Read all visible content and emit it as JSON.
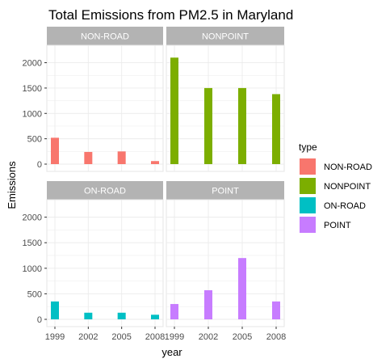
{
  "chart_data": {
    "type": "bar",
    "title": "Total Emissions from PM2.5 in Maryland",
    "xlabel": "year",
    "ylabel": "Emissions",
    "categories": [
      "1999",
      "2002",
      "2005",
      "2008"
    ],
    "ylim": [
      0,
      2200
    ],
    "yticks": [
      "0",
      "500",
      "1000",
      "1500",
      "2000"
    ],
    "grid": true,
    "legend_title": "type",
    "legend_position": "right",
    "panels": [
      {
        "name": "NON-ROAD",
        "color": "#F8766D",
        "values": [
          520,
          240,
          250,
          60
        ]
      },
      {
        "name": "NONPOINT",
        "color": "#7CAE00",
        "values": [
          2100,
          1500,
          1500,
          1380
        ]
      },
      {
        "name": "ON-ROAD",
        "color": "#00BFC4",
        "values": [
          350,
          130,
          130,
          90
        ]
      },
      {
        "name": "POINT",
        "color": "#C77CFF",
        "values": [
          300,
          570,
          1200,
          350
        ]
      }
    ]
  }
}
